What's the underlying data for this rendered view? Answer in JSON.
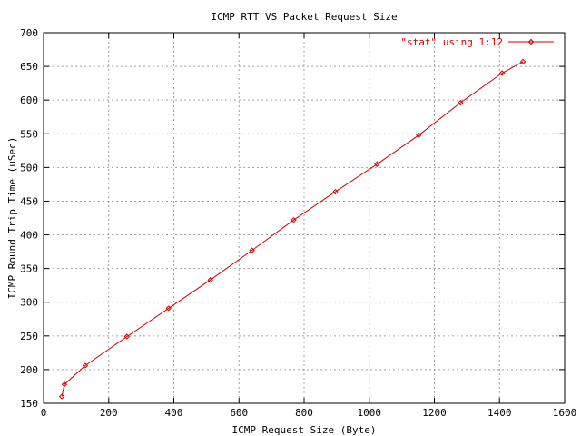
{
  "chart_data": {
    "type": "line",
    "title": "ICMP RTT VS Packet Request Size",
    "xlabel": "ICMP Request Size (Byte)",
    "ylabel": "ICMP Round Trip Time (uSec)",
    "xlim": [
      0,
      1600
    ],
    "ylim": [
      150,
      700
    ],
    "xticks": [
      0,
      200,
      400,
      600,
      800,
      1000,
      1200,
      1400,
      1600
    ],
    "yticks": [
      150,
      200,
      250,
      300,
      350,
      400,
      450,
      500,
      550,
      600,
      650,
      700
    ],
    "grid": true,
    "legend_position": "top-right",
    "series": [
      {
        "name": "\"stat\" using 1:12",
        "color": "#d00000",
        "marker": "diamond",
        "points": [
          {
            "x": 56,
            "y": 160
          },
          {
            "x": 64,
            "y": 178
          },
          {
            "x": 128,
            "y": 206
          },
          {
            "x": 256,
            "y": 249
          },
          {
            "x": 384,
            "y": 291
          },
          {
            "x": 512,
            "y": 333
          },
          {
            "x": 640,
            "y": 377
          },
          {
            "x": 768,
            "y": 422
          },
          {
            "x": 896,
            "y": 464
          },
          {
            "x": 1024,
            "y": 505
          },
          {
            "x": 1152,
            "y": 548
          },
          {
            "x": 1280,
            "y": 596
          },
          {
            "x": 1408,
            "y": 640
          },
          {
            "x": 1472,
            "y": 657
          }
        ]
      }
    ]
  }
}
